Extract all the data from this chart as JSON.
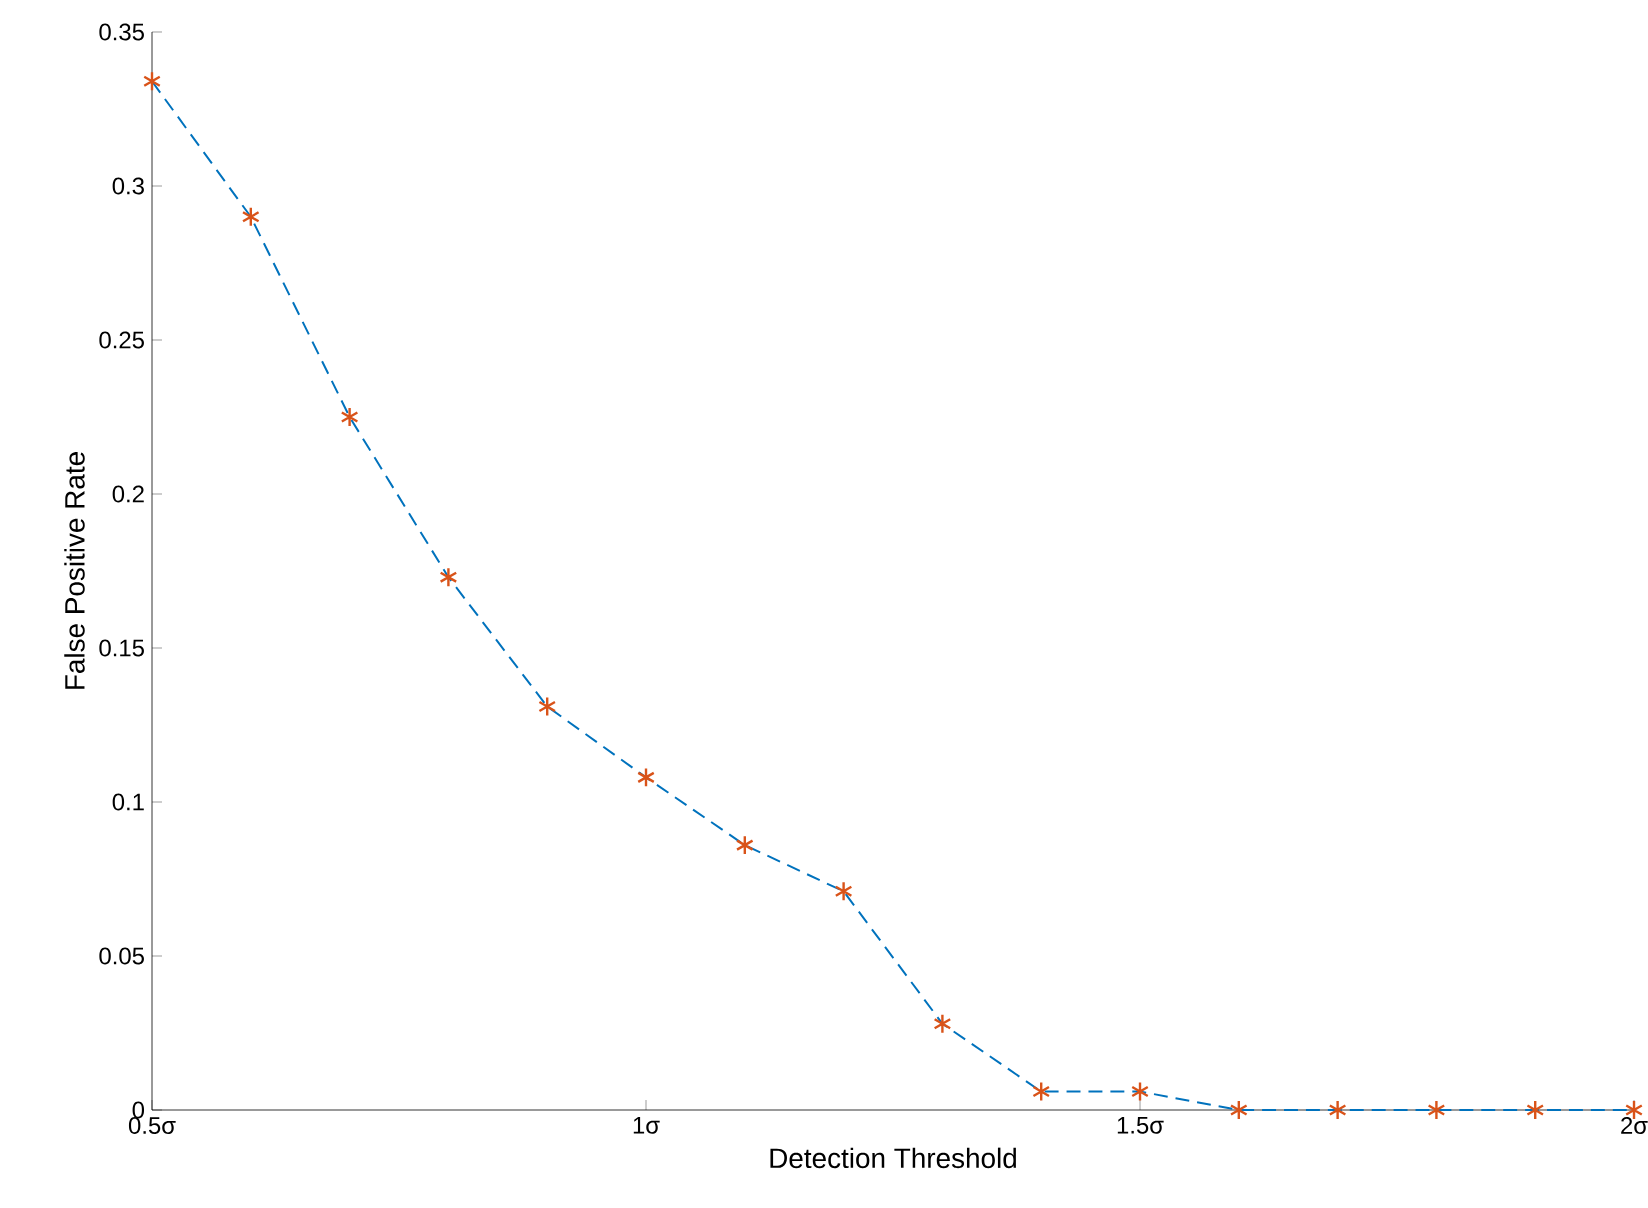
{
  "chart_data": {
    "type": "line",
    "xlabel": "Detection Threshold",
    "ylabel": "False Positive Rate",
    "xlim": [
      0.5,
      2
    ],
    "ylim": [
      0,
      0.35
    ],
    "xticks": [
      {
        "value": 0.5,
        "label": "0.5σ"
      },
      {
        "value": 1,
        "label": "1σ"
      },
      {
        "value": 1.5,
        "label": "1.5σ"
      },
      {
        "value": 2,
        "label": "2σ"
      }
    ],
    "yticks": [
      0,
      0.05,
      0.1,
      0.15,
      0.2,
      0.25,
      0.3,
      0.35
    ],
    "x": [
      0.5,
      0.6,
      0.7,
      0.8,
      0.9,
      1.0,
      1.1,
      1.2,
      1.3,
      1.4,
      1.5,
      1.6,
      1.7,
      1.8,
      1.9,
      2.0
    ],
    "series": [
      {
        "color": "#0072bd",
        "line_style": "dashed",
        "marker": "none",
        "values": [
          0.334,
          0.29,
          0.225,
          0.173,
          0.131,
          0.108,
          0.086,
          0.071,
          0.028,
          0.006,
          0.006,
          0,
          0,
          0,
          0,
          0
        ]
      },
      {
        "type": "scatter",
        "color": "#d95319",
        "marker": "cross",
        "values": [
          0.334,
          0.29,
          0.225,
          0.173,
          0.131,
          0.108,
          0.086,
          0.071,
          0.028,
          0.006,
          0.006,
          0,
          0,
          0,
          0,
          0
        ]
      }
    ],
    "grid": false
  }
}
